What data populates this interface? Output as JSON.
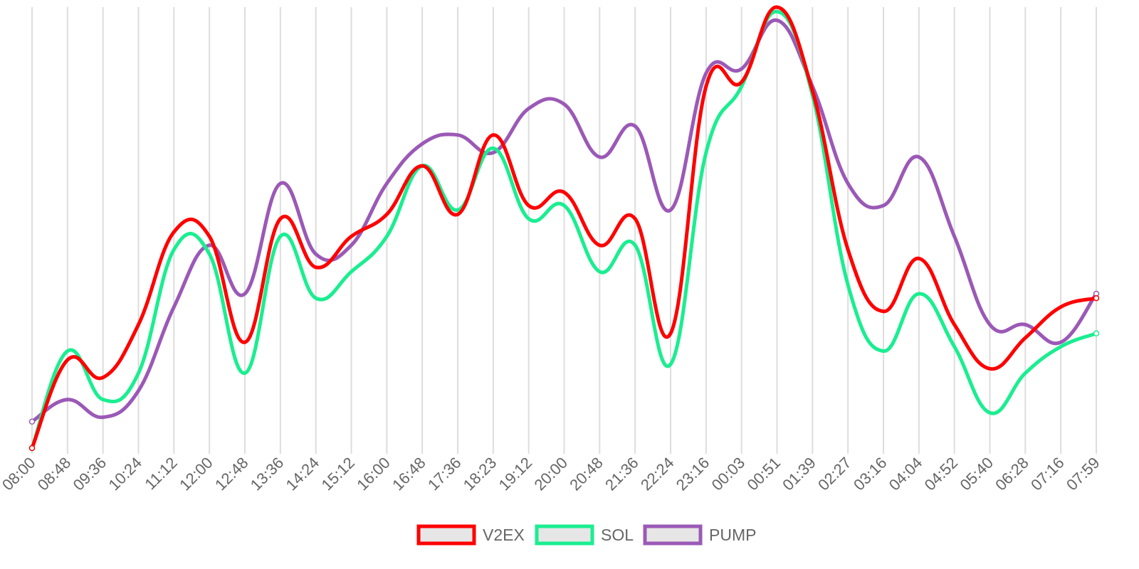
{
  "chart_data": {
    "type": "line",
    "title": "",
    "xlabel": "",
    "ylabel": "",
    "ylim": [
      0,
      100
    ],
    "grid": "vertical",
    "legend_position": "bottom-center",
    "categories": [
      "08:00",
      "08:48",
      "09:36",
      "10:24",
      "11:12",
      "12:00",
      "12:48",
      "13:36",
      "14:24",
      "15:12",
      "16:00",
      "16:48",
      "17:36",
      "18:23",
      "19:12",
      "20:00",
      "20:48",
      "21:36",
      "22:24",
      "23:16",
      "00:03",
      "00:51",
      "01:39",
      "02:27",
      "03:16",
      "04:04",
      "04:52",
      "05:40",
      "06:28",
      "07:16",
      "07:59"
    ],
    "series": [
      {
        "name": "V2EX",
        "color": "#ff0000",
        "values": [
          0,
          20,
          16,
          28,
          49,
          48,
          24,
          52,
          41,
          48,
          53,
          64,
          53,
          71,
          55,
          58,
          46,
          52,
          26,
          82,
          83,
          100,
          81,
          45,
          31,
          43,
          28,
          18,
          25,
          32,
          34
        ]
      },
      {
        "name": "SOL",
        "color": "#1aee90",
        "values": [
          0,
          22,
          11,
          17,
          45,
          44,
          17,
          48,
          34,
          40,
          48,
          64,
          54,
          68,
          52,
          55,
          40,
          46,
          19,
          67,
          82,
          99,
          80,
          37,
          22,
          35,
          23,
          8,
          17,
          23,
          26
        ]
      },
      {
        "name": "PUMP",
        "color": "#9b59b6",
        "values": [
          6,
          11,
          7,
          13,
          32,
          46,
          35,
          60,
          44,
          46,
          60,
          69,
          71,
          67,
          77,
          78,
          66,
          73,
          54,
          85,
          86,
          97,
          82,
          60,
          55,
          66,
          48,
          28,
          28,
          24,
          35
        ]
      }
    ]
  }
}
